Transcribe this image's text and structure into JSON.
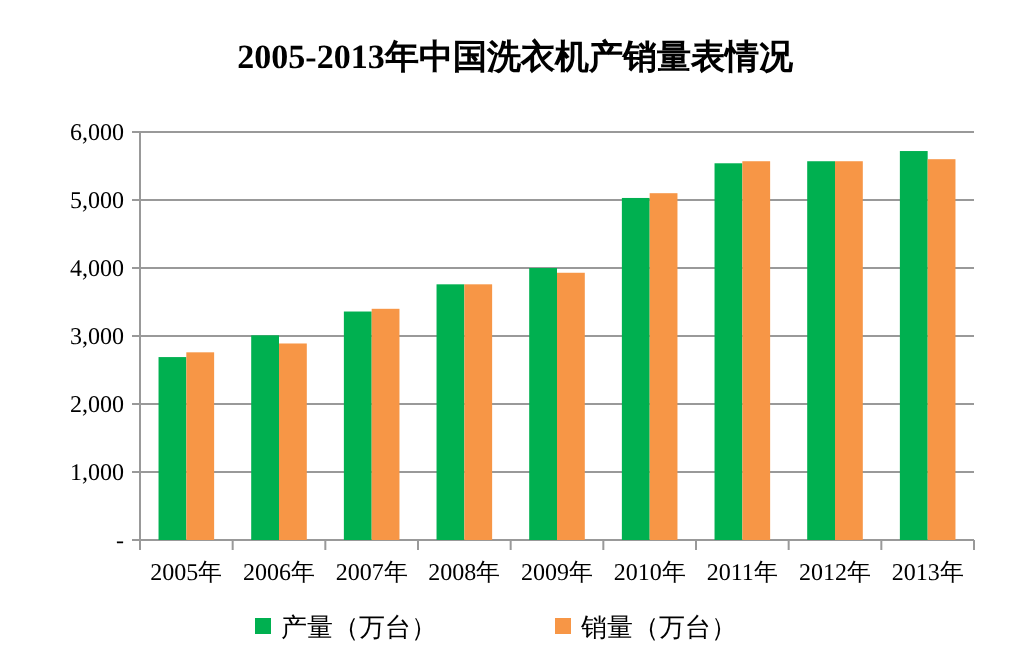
{
  "chart_data": {
    "type": "bar",
    "title": "2005-2013年中国洗衣机产销量表情况",
    "categories": [
      "2005年",
      "2006年",
      "2007年",
      "2008年",
      "2009年",
      "2010年",
      "2011年",
      "2012年",
      "2013年"
    ],
    "series": [
      {
        "name": "产量（万台）",
        "color": "#00b050",
        "values": [
          2690,
          3010,
          3360,
          3760,
          4000,
          5030,
          5540,
          5570,
          5720
        ]
      },
      {
        "name": "销量（万台）",
        "color": "#f79646",
        "values": [
          2760,
          2890,
          3400,
          3760,
          3930,
          5100,
          5570,
          5570,
          5600
        ]
      }
    ],
    "ylim": [
      0,
      6000
    ],
    "yticks": [
      {
        "value": 0,
        "label": "-"
      },
      {
        "value": 1000,
        "label": "1,000"
      },
      {
        "value": 2000,
        "label": "2,000"
      },
      {
        "value": 3000,
        "label": "3,000"
      },
      {
        "value": 4000,
        "label": "4,000"
      },
      {
        "value": 5000,
        "label": "5,000"
      },
      {
        "value": 6000,
        "label": "6,000"
      }
    ],
    "grid": "y",
    "legend": "bottom"
  }
}
